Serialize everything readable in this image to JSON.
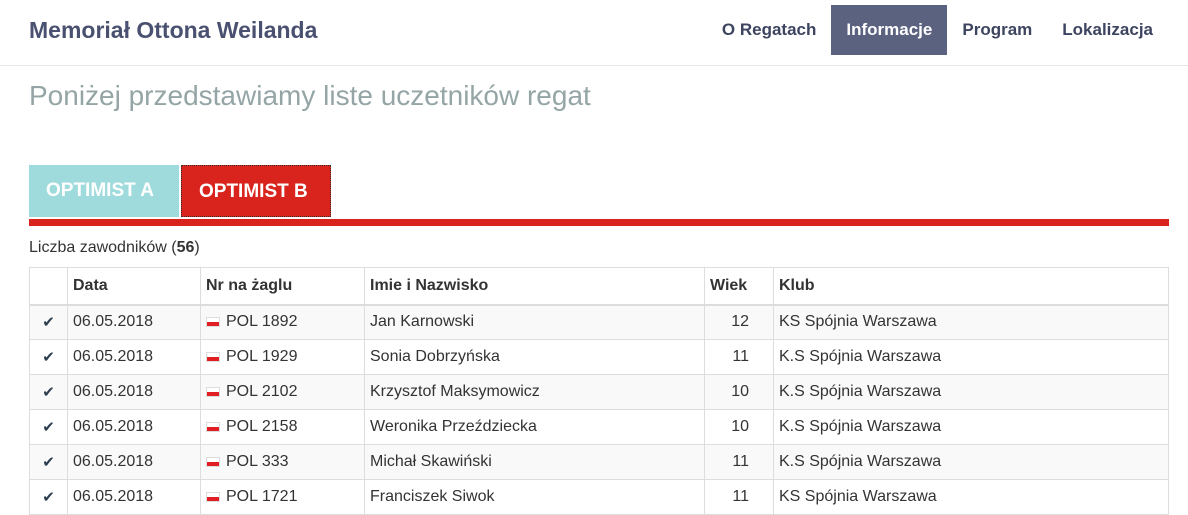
{
  "header": {
    "brand": "Memoriał Ottona Weilanda",
    "menu": [
      {
        "label": "O Regatach",
        "active": false
      },
      {
        "label": "Informacje",
        "active": true
      },
      {
        "label": "Program",
        "active": false
      },
      {
        "label": "Lokalizacja",
        "active": false
      }
    ]
  },
  "title": "Poniżej przedstawiamy liste uczetników regat",
  "tabs": [
    {
      "label": "OPTIMIST A",
      "color": "#9fdbdc"
    },
    {
      "label": "OPTIMIST B",
      "color": "#d9241e",
      "active": true
    }
  ],
  "count": {
    "label": "Liczba zawodników (",
    "value": "56",
    "suffix": ")"
  },
  "table": {
    "headers": [
      "",
      "Data",
      "Nr na żaglu",
      "Imie i Nazwisko",
      "Wiek",
      "Klub"
    ],
    "rows": [
      {
        "check": "✔",
        "date": "06.05.2018",
        "sail": "POL 1892",
        "name": "Jan Karnowski",
        "age": "12",
        "club": "KS Spójnia Warszawa"
      },
      {
        "check": "✔",
        "date": "06.05.2018",
        "sail": "POL 1929",
        "name": "Sonia Dobrzyńska",
        "age": "11",
        "club": "K.S Spójnia Warszawa"
      },
      {
        "check": "✔",
        "date": "06.05.2018",
        "sail": "POL 2102",
        "name": "Krzysztof Maksymowicz",
        "age": "10",
        "club": "K.S Spójnia Warszawa"
      },
      {
        "check": "✔",
        "date": "06.05.2018",
        "sail": "POL 2158",
        "name": "Weronika Przeździecka",
        "age": "10",
        "club": "K.S Spójnia Warszawa"
      },
      {
        "check": "✔",
        "date": "06.05.2018",
        "sail": "POL 333",
        "name": "Michał Skawiński",
        "age": "11",
        "club": "K.S Spójnia Warszawa"
      },
      {
        "check": "✔",
        "date": "06.05.2018",
        "sail": "POL 1721",
        "name": "Franciszek Siwok",
        "age": "11",
        "club": "KS Spójnia Warszawa"
      }
    ]
  }
}
